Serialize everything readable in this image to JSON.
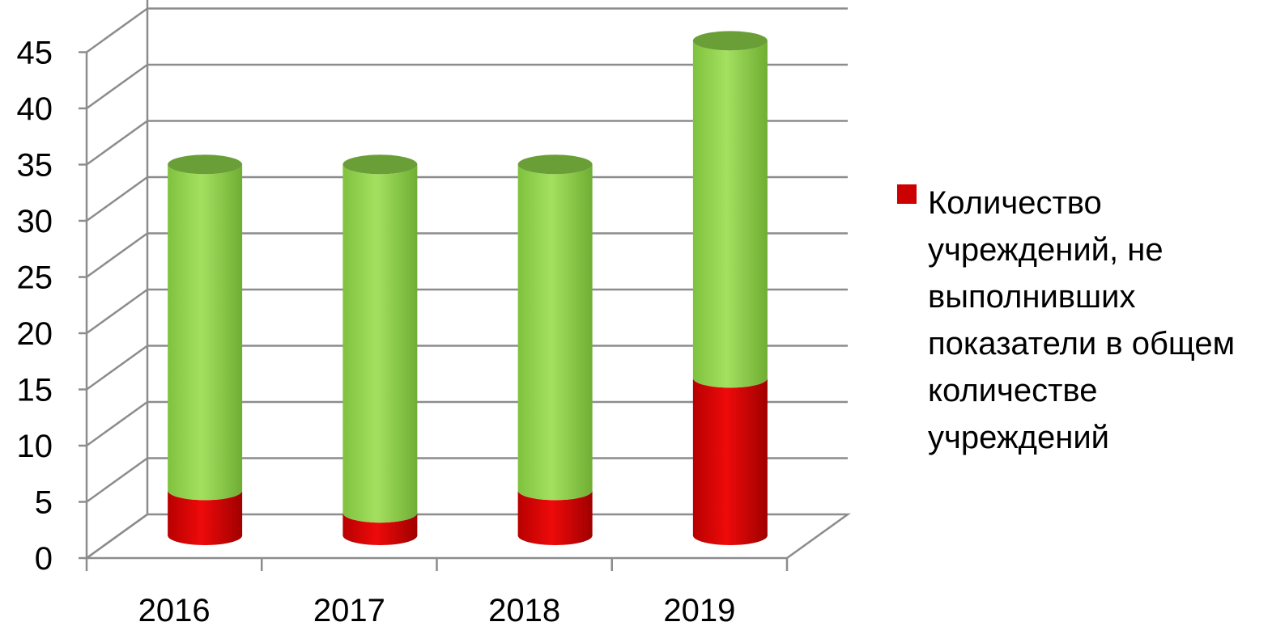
{
  "chart_data": {
    "type": "bar",
    "subtype": "stacked-cylinder-3d",
    "categories": [
      "2016",
      "2017",
      "2018",
      "2019"
    ],
    "series": [
      {
        "name": "Количество учреждений, не выполнивших показатели в общем количестве учреждений",
        "values": [
          4,
          2,
          4,
          14
        ],
        "color": "#cc0000",
        "in_legend": true
      },
      {
        "name": "",
        "values": [
          29,
          31,
          29,
          30
        ],
        "color": "#8fd14f",
        "in_legend": false
      }
    ],
    "y_ticks": [
      "0",
      "5",
      "10",
      "15",
      "20",
      "25",
      "30",
      "35",
      "40",
      "45"
    ],
    "ylim": [
      0,
      45
    ],
    "y_step": 5,
    "grid": true,
    "legend_position": "right",
    "title": "",
    "xlabel": "",
    "ylabel": ""
  },
  "legend": {
    "items": [
      {
        "label": "Количество учреждений, не выполнивших показатели в общем количестве учреждений",
        "color": "#cc0000"
      }
    ]
  }
}
